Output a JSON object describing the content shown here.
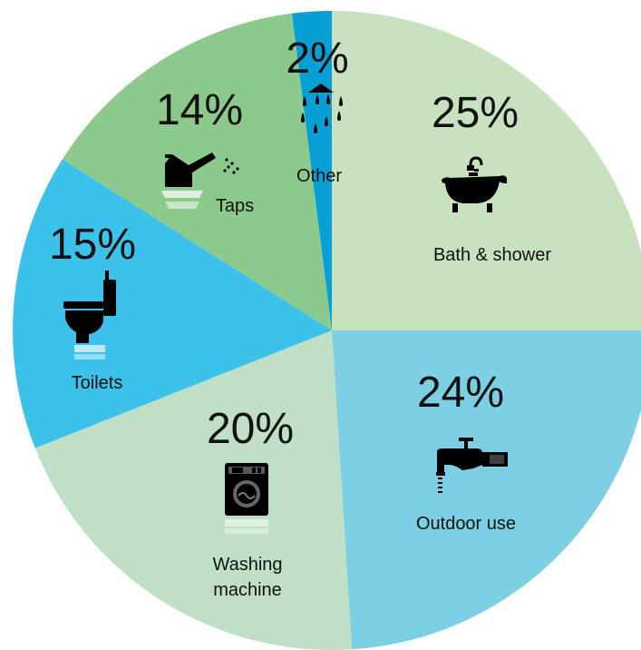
{
  "chart_data": {
    "type": "pie",
    "title": "",
    "slices": [
      {
        "label": "Bath & shower",
        "label_lines": [
          "Bath & shower"
        ],
        "value": 25,
        "value_label": "25%",
        "color": "#c8e2bf",
        "icon": "bathtub-icon"
      },
      {
        "label": "Outdoor use",
        "label_lines": [
          "Outdoor use"
        ],
        "value": 24,
        "value_label": "24%",
        "color": "#7dcfe3",
        "icon": "outdoor-tap-icon"
      },
      {
        "label": "Washing machine",
        "label_lines": [
          "Washing",
          "machine"
        ],
        "value": 20,
        "value_label": "20%",
        "color": "#bfe0c6",
        "icon": "washing-machine-icon"
      },
      {
        "label": "Toilets",
        "label_lines": [
          "Toilets"
        ],
        "value": 15,
        "value_label": "15%",
        "color": "#3cc2ea",
        "icon": "toilet-icon"
      },
      {
        "label": "Taps",
        "label_lines": [
          "Taps"
        ],
        "value": 14,
        "value_label": "14%",
        "color": "#8cc98c",
        "icon": "tap-icon"
      },
      {
        "label": "Other",
        "label_lines": [
          "Other"
        ],
        "value": 2,
        "value_label": "2%",
        "color": "#089fd5",
        "icon": "shower-drops-icon"
      }
    ],
    "start_angle": "12 o'clock",
    "direction": "clockwise",
    "legend": "none"
  }
}
